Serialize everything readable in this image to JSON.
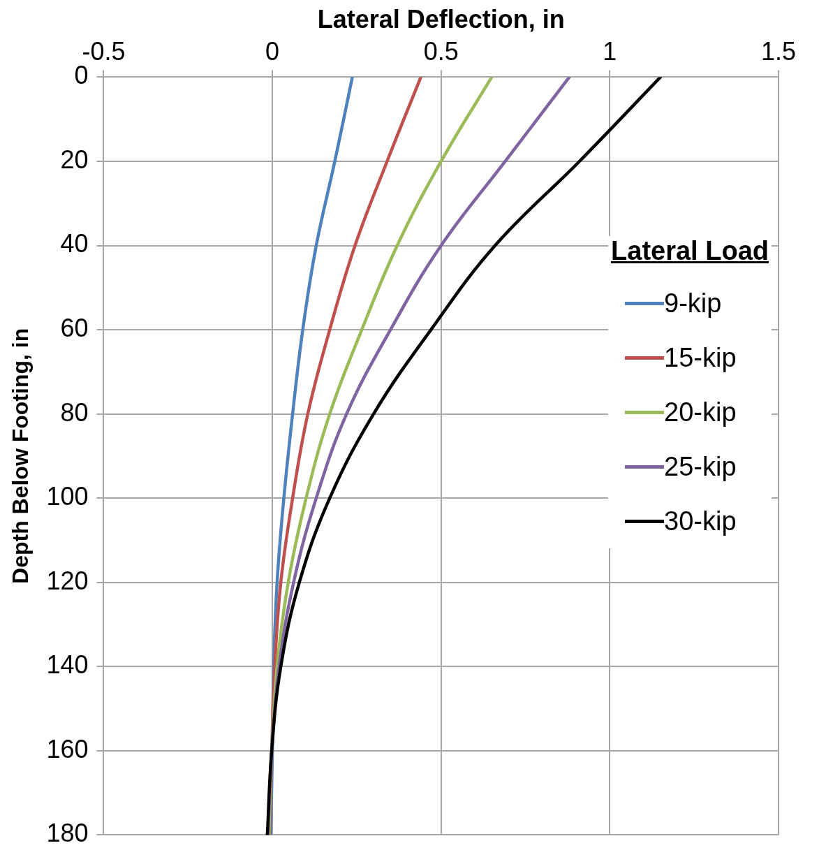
{
  "chart_data": {
    "type": "line",
    "xlabel": "Lateral Deflection, in",
    "ylabel": "Depth Below Footing, in",
    "legend_title": "Lateral Load",
    "xlim": [
      -0.5,
      1.5
    ],
    "xticks": [
      -0.5,
      0,
      0.5,
      1,
      1.5
    ],
    "ylim": [
      180,
      0
    ],
    "yticks": [
      0,
      20,
      40,
      60,
      80,
      100,
      120,
      140,
      160,
      180
    ],
    "grid": true,
    "legend": "right",
    "marker": "none",
    "line_style": "solid",
    "series": [
      {
        "name": "9-kip",
        "color": "#4f81bd",
        "x": [
          0.237,
          0.185,
          0.13,
          0.09,
          0.06,
          0.034,
          0.014,
          0.004,
          0,
          -0.005
        ],
        "values": [
          0,
          20,
          40,
          60,
          80,
          100,
          120,
          140,
          160,
          180
        ]
      },
      {
        "name": "15-kip",
        "color": "#c0504d",
        "x": [
          0.44,
          0.34,
          0.245,
          0.17,
          0.105,
          0.06,
          0.025,
          0.007,
          -0.002,
          -0.008
        ],
        "values": [
          0,
          20,
          40,
          60,
          80,
          100,
          120,
          140,
          160,
          180
        ]
      },
      {
        "name": "20-kip",
        "color": "#9bbb59",
        "x": [
          0.65,
          0.5,
          0.37,
          0.265,
          0.17,
          0.1,
          0.047,
          0.014,
          -0.002,
          -0.01
        ],
        "values": [
          0,
          20,
          40,
          60,
          80,
          100,
          120,
          140,
          160,
          180
        ]
      },
      {
        "name": "25-kip",
        "color": "#8064a2",
        "x": [
          0.88,
          0.69,
          0.5,
          0.35,
          0.22,
          0.13,
          0.063,
          0.02,
          -0.002,
          -0.013
        ],
        "values": [
          0,
          20,
          40,
          60,
          80,
          100,
          120,
          140,
          160,
          180
        ]
      },
      {
        "name": "30-kip",
        "color": "#000000",
        "x": [
          1.15,
          0.91,
          0.66,
          0.47,
          0.3,
          0.17,
          0.08,
          0.025,
          -0.002,
          -0.015
        ],
        "values": [
          0,
          20,
          40,
          60,
          80,
          100,
          120,
          140,
          160,
          180
        ]
      }
    ]
  }
}
